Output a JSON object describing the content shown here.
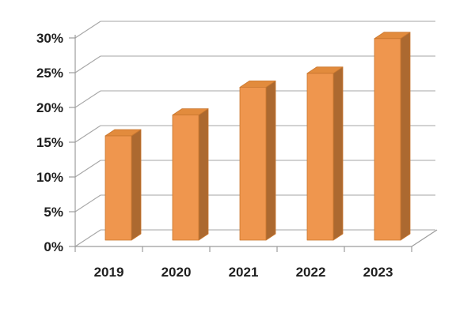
{
  "chart_data": {
    "type": "bar",
    "style": "3d-column",
    "title": "",
    "xlabel": "",
    "ylabel": "",
    "categories": [
      "2019",
      "2020",
      "2021",
      "2022",
      "2023"
    ],
    "values": [
      15,
      18,
      22,
      24,
      29
    ],
    "value_unit": "%",
    "ylim": [
      0,
      30
    ],
    "ytick_step": 5,
    "ytick_labels": [
      "0%",
      "5%",
      "10%",
      "15%",
      "20%",
      "25%",
      "30%"
    ],
    "grid": true,
    "legend": "none",
    "colors": {
      "bar_front": "#EF964E",
      "bar_top": "#E28B3D",
      "bar_side": "#AC6930",
      "bar_edge": "#C9772F",
      "gridline": "#A6A6A6",
      "axis": "#9C9C9C",
      "label_text": "#1F1F1F",
      "background": "#FFFFFF"
    }
  }
}
